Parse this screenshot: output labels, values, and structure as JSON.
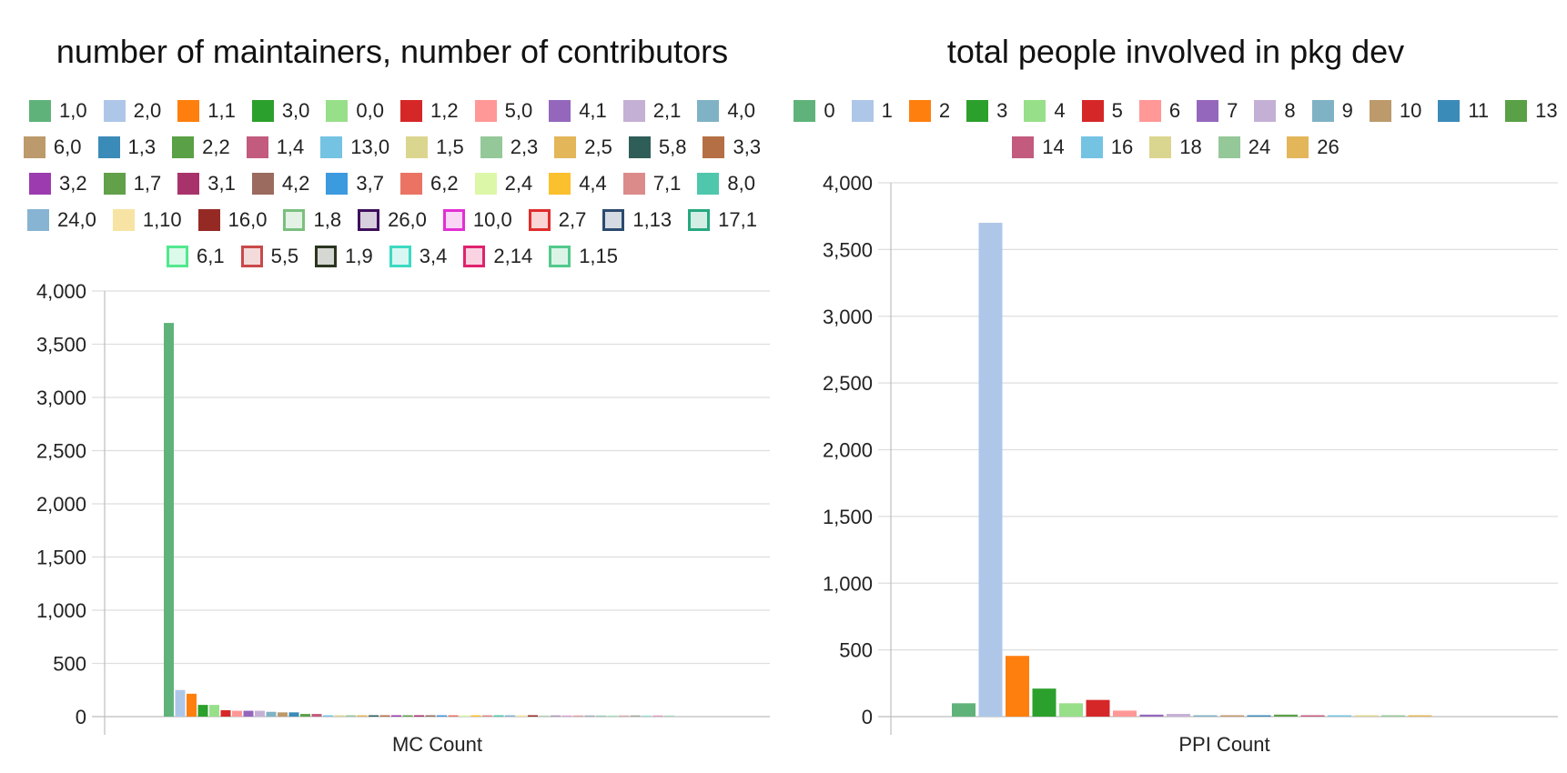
{
  "chart_data": [
    {
      "type": "bar",
      "title": "number of maintainers, number of contributors",
      "xlabel": "MC Count",
      "ylabel": "",
      "ylim": [
        0,
        4000
      ],
      "yticks": [
        "0",
        "500",
        "1,000",
        "1,500",
        "2,000",
        "2,500",
        "3,000",
        "3,500",
        "4,000"
      ],
      "legend_position": "top",
      "grid": true,
      "series": [
        {
          "name": "1,0",
          "value": 3700,
          "color": "#5fb37a",
          "outline": false
        },
        {
          "name": "2,0",
          "value": 250,
          "color": "#aec7e8",
          "outline": false
        },
        {
          "name": "1,1",
          "value": 215,
          "color": "#ff7f0e",
          "outline": false
        },
        {
          "name": "3,0",
          "value": 110,
          "color": "#2ca02c",
          "outline": false
        },
        {
          "name": "0,0",
          "value": 110,
          "color": "#98df8a",
          "outline": false
        },
        {
          "name": "1,2",
          "value": 60,
          "color": "#d62728",
          "outline": false
        },
        {
          "name": "5,0",
          "value": 55,
          "color": "#ff9896",
          "outline": false
        },
        {
          "name": "4,1",
          "value": 55,
          "color": "#9467bd",
          "outline": false
        },
        {
          "name": "2,1",
          "value": 55,
          "color": "#c5b0d5",
          "outline": false
        },
        {
          "name": "4,0",
          "value": 45,
          "color": "#7fb2c4",
          "outline": false
        },
        {
          "name": "6,0",
          "value": 40,
          "color": "#bc9a6c",
          "outline": false
        },
        {
          "name": "1,3",
          "value": 40,
          "color": "#3b8bb8",
          "outline": false
        },
        {
          "name": "2,2",
          "value": 25,
          "color": "#5aa046",
          "outline": false
        },
        {
          "name": "1,4",
          "value": 25,
          "color": "#c25b7d",
          "outline": false
        },
        {
          "name": "13,0",
          "value": 8,
          "color": "#74c3e3",
          "outline": false
        },
        {
          "name": "1,5",
          "value": 10,
          "color": "#dbd68f",
          "outline": false
        },
        {
          "name": "2,3",
          "value": 10,
          "color": "#95c898",
          "outline": false
        },
        {
          "name": "2,5",
          "value": 8,
          "color": "#e3b65a",
          "outline": false
        },
        {
          "name": "5,8",
          "value": 6,
          "color": "#2f5e58",
          "outline": false
        },
        {
          "name": "3,3",
          "value": 8,
          "color": "#b56f44",
          "outline": false
        },
        {
          "name": "3,2",
          "value": 10,
          "color": "#9c3bb0",
          "outline": false
        },
        {
          "name": "1,7",
          "value": 8,
          "color": "#62a04a",
          "outline": false
        },
        {
          "name": "3,1",
          "value": 10,
          "color": "#a8336b",
          "outline": false
        },
        {
          "name": "4,2",
          "value": 8,
          "color": "#9a6b5e",
          "outline": false
        },
        {
          "name": "3,7",
          "value": 6,
          "color": "#3c9ade",
          "outline": false
        },
        {
          "name": "6,2",
          "value": 8,
          "color": "#ea7364",
          "outline": false
        },
        {
          "name": "2,4",
          "value": 10,
          "color": "#dcf7a8",
          "outline": false
        },
        {
          "name": "4,4",
          "value": 6,
          "color": "#fbc02d",
          "outline": false
        },
        {
          "name": "7,1",
          "value": 8,
          "color": "#dc8b8b",
          "outline": false
        },
        {
          "name": "8,0",
          "value": 8,
          "color": "#4fc7ad",
          "outline": false
        },
        {
          "name": "24,0",
          "value": 6,
          "color": "#87b4d2",
          "outline": false
        },
        {
          "name": "1,10",
          "value": 6,
          "color": "#f7e4a4",
          "outline": false
        },
        {
          "name": "16,0",
          "value": 8,
          "color": "#952a25",
          "outline": false
        },
        {
          "name": "1,8",
          "value": 8,
          "color": "#7ac07e",
          "outline": true
        },
        {
          "name": "26,0",
          "value": 8,
          "color": "#3e0f5c",
          "outline": true
        },
        {
          "name": "10,0",
          "value": 8,
          "color": "#e22fd4",
          "outline": true
        },
        {
          "name": "2,7",
          "value": 8,
          "color": "#e12c2c",
          "outline": true
        },
        {
          "name": "1,13",
          "value": 8,
          "color": "#2c4b6f",
          "outline": true
        },
        {
          "name": "17,1",
          "value": 8,
          "color": "#27a880",
          "outline": true
        },
        {
          "name": "6,1",
          "value": 8,
          "color": "#52e88f",
          "outline": true
        },
        {
          "name": "5,5",
          "value": 8,
          "color": "#c9494a",
          "outline": true
        },
        {
          "name": "1,9",
          "value": 8,
          "color": "#2b3521",
          "outline": true
        },
        {
          "name": "3,4",
          "value": 8,
          "color": "#3cd9c2",
          "outline": true
        },
        {
          "name": "2,14",
          "value": 8,
          "color": "#e0226e",
          "outline": true
        },
        {
          "name": "1,15",
          "value": 8,
          "color": "#52c98c",
          "outline": true
        }
      ]
    },
    {
      "type": "bar",
      "title": "total people involved in pkg dev",
      "xlabel": "PPI Count",
      "ylabel": "",
      "ylim": [
        0,
        4000
      ],
      "yticks": [
        "0",
        "500",
        "1,000",
        "1,500",
        "2,000",
        "2,500",
        "3,000",
        "3,500",
        "4,000"
      ],
      "legend_position": "top",
      "grid": true,
      "series": [
        {
          "name": "0",
          "value": 100,
          "color": "#5fb37a",
          "outline": false
        },
        {
          "name": "1",
          "value": 3700,
          "color": "#aec7e8",
          "outline": false
        },
        {
          "name": "2",
          "value": 455,
          "color": "#ff7f0e",
          "outline": false
        },
        {
          "name": "3",
          "value": 210,
          "color": "#2ca02c",
          "outline": false
        },
        {
          "name": "4",
          "value": 100,
          "color": "#98df8a",
          "outline": false
        },
        {
          "name": "5",
          "value": 125,
          "color": "#d62728",
          "outline": false
        },
        {
          "name": "6",
          "value": 45,
          "color": "#ff9896",
          "outline": false
        },
        {
          "name": "7",
          "value": 15,
          "color": "#9467bd",
          "outline": false
        },
        {
          "name": "8",
          "value": 20,
          "color": "#c5b0d5",
          "outline": false
        },
        {
          "name": "9",
          "value": 10,
          "color": "#7fb2c4",
          "outline": false
        },
        {
          "name": "10",
          "value": 10,
          "color": "#bc9a6c",
          "outline": false
        },
        {
          "name": "11",
          "value": 10,
          "color": "#3b8bb8",
          "outline": false
        },
        {
          "name": "13",
          "value": 15,
          "color": "#5aa046",
          "outline": false
        },
        {
          "name": "14",
          "value": 10,
          "color": "#c25b7d",
          "outline": false
        },
        {
          "name": "16",
          "value": 8,
          "color": "#74c3e3",
          "outline": false
        },
        {
          "name": "18",
          "value": 8,
          "color": "#dbd68f",
          "outline": false
        },
        {
          "name": "24",
          "value": 8,
          "color": "#95c898",
          "outline": false
        },
        {
          "name": "26",
          "value": 8,
          "color": "#e3b65a",
          "outline": false
        }
      ]
    }
  ]
}
